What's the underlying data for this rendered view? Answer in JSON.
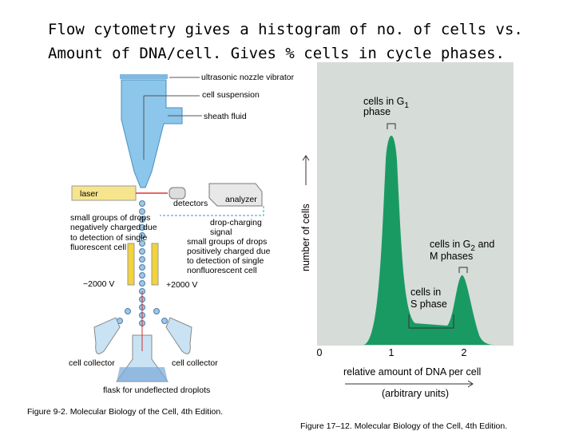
{
  "slide": {
    "title_lines": [
      "Flow cytometry gives a histogram of no. of cells vs.",
      "Amount of DNA/cell. Gives % cells in cycle phases."
    ]
  },
  "sorter_figure": {
    "labels": {
      "vibrator": "ultrasonic nozzle vibrator",
      "suspension": "cell suspension",
      "sheath": "sheath fluid",
      "laser": "laser",
      "analyzer": "analyzer",
      "detectors": "detectors",
      "charging": [
        "drop-charging",
        "signal"
      ],
      "negative": [
        "small groups of drops",
        "negatively charged due",
        "to detection of single",
        "fluorescent cell"
      ],
      "positive": [
        "small groups of drops",
        "positively charged due",
        "to detection of single",
        "nonfluorescent cell"
      ],
      "minus_voltage": "−2000 V",
      "plus_voltage": "+2000 V",
      "collector_left": "cell collector",
      "collector_right": "cell collector",
      "flask": "flask for undeflected droplots"
    },
    "caption": "Figure 9-2. Molecular Biology of the Cell, 4th Edition."
  },
  "histogram_figure": {
    "g1_label": [
      "cells in G",
      "1",
      "phase"
    ],
    "g2_label": [
      "cells in G",
      "2",
      " and",
      "M phases"
    ],
    "s_label": [
      "cells in",
      "S phase"
    ],
    "y_axis_label": "number of cells",
    "x_ticks": [
      "0",
      "1",
      "2"
    ],
    "x_axis_label": "relative amount of DNA per cell",
    "x_axis_units": "(arbitrary units)",
    "caption": "Figure 17–12. Molecular Biology of the Cell, 4th Edition."
  }
}
